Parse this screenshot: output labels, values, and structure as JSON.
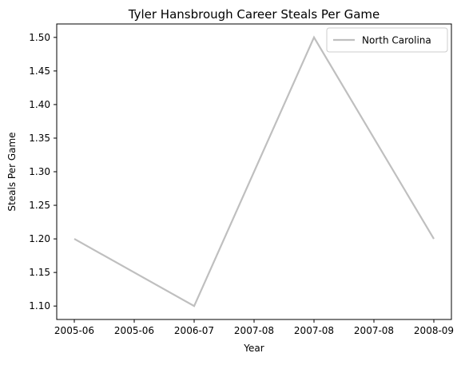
{
  "chart_data": {
    "type": "line",
    "title": "Tyler Hansbrough Career Steals Per Game",
    "xlabel": "Year",
    "ylabel": "Steals Per Game",
    "x_tick_labels": [
      "2005-06",
      "2005-06",
      "2006-07",
      "2007-08",
      "2007-08",
      "2007-08",
      "2008-09"
    ],
    "categories": [
      "2005-06",
      "2006-07",
      "2007-08",
      "2008-09"
    ],
    "series": [
      {
        "name": "North Carolina",
        "color": "#bfbfbf",
        "values": [
          1.2,
          1.1,
          1.5,
          1.2
        ]
      }
    ],
    "ylim": [
      1.08,
      1.52
    ],
    "y_ticks": [
      1.1,
      1.15,
      1.2,
      1.25,
      1.3,
      1.35,
      1.4,
      1.45,
      1.5
    ],
    "grid": false,
    "legend_position": "top-right"
  }
}
